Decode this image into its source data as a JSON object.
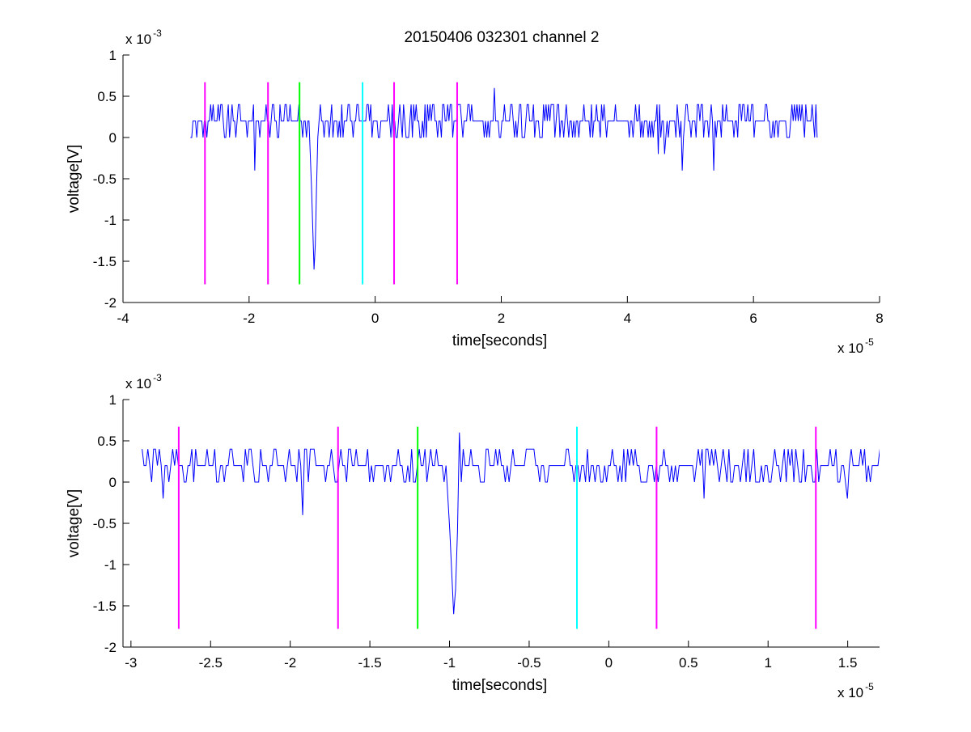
{
  "figure": {
    "title": "20150406 032301 channel 2",
    "colors": {
      "signal": "#0000ff",
      "marker_magenta": "#ff00ff",
      "marker_green": "#00ff00",
      "marker_cyan": "#00ffff",
      "axes": "#000000"
    }
  },
  "chart_data": [
    {
      "type": "line",
      "title": "20150406 032301 channel 2",
      "xlabel": "time[seconds]",
      "ylabel": "voltage[V]",
      "x_multiplier": "x 10",
      "x_exponent": "-5",
      "y_multiplier": "x 10",
      "y_exponent": "-3",
      "xlim": [
        -4,
        8
      ],
      "ylim": [
        -2,
        1
      ],
      "x_ticks": [
        -4,
        -2,
        0,
        2,
        4,
        6,
        8
      ],
      "x_tick_labels": [
        "-4",
        "-2",
        "0",
        "2",
        "4",
        "6",
        "8"
      ],
      "y_ticks": [
        1,
        0.5,
        0,
        -0.5,
        -1,
        -1.5,
        -2
      ],
      "y_tick_labels": [
        "1",
        "0.5",
        "0",
        "-0.5",
        "-1",
        "-1.5",
        "-2"
      ],
      "grid": false,
      "signal": {
        "x_range": [
          -2.93,
          7.02
        ],
        "baseline": 0.2,
        "levels": [
          0,
          0.2,
          0.4
        ],
        "events": [
          {
            "x": -1.92,
            "y": -0.4
          },
          {
            "x": -0.98,
            "y": -1.6
          },
          {
            "x": 1.9,
            "y": 0.6
          },
          {
            "x": 4.88,
            "y": -0.4
          },
          {
            "x": 5.38,
            "y": -0.4
          },
          {
            "x": 4.5,
            "y": -0.2
          },
          {
            "x": 4.6,
            "y": -0.2
          }
        ]
      },
      "markers": [
        {
          "x": -2.7,
          "y_range": [
            -1.78,
            0.67
          ],
          "color": "magenta"
        },
        {
          "x": -1.7,
          "y_range": [
            -1.78,
            0.67
          ],
          "color": "magenta"
        },
        {
          "x": -1.2,
          "y_range": [
            -1.78,
            0.67
          ],
          "color": "green"
        },
        {
          "x": -0.2,
          "y_range": [
            -1.78,
            0.67
          ],
          "color": "cyan"
        },
        {
          "x": 0.3,
          "y_range": [
            -1.78,
            0.67
          ],
          "color": "magenta"
        },
        {
          "x": 1.3,
          "y_range": [
            -1.78,
            0.67
          ],
          "color": "magenta"
        }
      ]
    },
    {
      "type": "line",
      "title": "",
      "xlabel": "time[seconds]",
      "ylabel": "voltage[V]",
      "x_multiplier": "x 10",
      "x_exponent": "-5",
      "y_multiplier": "x 10",
      "y_exponent": "-3",
      "xlim": [
        -3.05,
        1.7
      ],
      "ylim": [
        -2,
        1
      ],
      "x_ticks": [
        -3,
        -2.5,
        -2,
        -1.5,
        -1,
        -0.5,
        0,
        0.5,
        1,
        1.5
      ],
      "x_tick_labels": [
        "-3",
        "-2.5",
        "-2",
        "-1.5",
        "-1",
        "-0.5",
        "0",
        "0.5",
        "1",
        "1.5"
      ],
      "y_ticks": [
        1,
        0.5,
        0,
        -0.5,
        -1,
        -1.5,
        -2
      ],
      "y_tick_labels": [
        "1",
        "0.5",
        "0",
        "-0.5",
        "-1",
        "-1.5",
        "-2"
      ],
      "grid": false,
      "signal": {
        "x_range": [
          -2.93,
          1.7
        ],
        "baseline": 0.2,
        "levels": [
          0,
          0.2,
          0.4
        ],
        "events": [
          {
            "x": -2.8,
            "y": -0.2
          },
          {
            "x": -1.92,
            "y": -0.4
          },
          {
            "x": -0.98,
            "y": -1.6
          },
          {
            "x": -0.94,
            "y": 0.6
          },
          {
            "x": 0.6,
            "y": -0.2
          },
          {
            "x": 1.5,
            "y": -0.2
          }
        ]
      },
      "markers": [
        {
          "x": -2.7,
          "y_range": [
            -1.78,
            0.67
          ],
          "color": "magenta"
        },
        {
          "x": -1.7,
          "y_range": [
            -1.78,
            0.67
          ],
          "color": "magenta"
        },
        {
          "x": -1.2,
          "y_range": [
            -1.78,
            0.67
          ],
          "color": "green"
        },
        {
          "x": -0.2,
          "y_range": [
            -1.78,
            0.67
          ],
          "color": "cyan"
        },
        {
          "x": 0.3,
          "y_range": [
            -1.78,
            0.67
          ],
          "color": "magenta"
        },
        {
          "x": 1.3,
          "y_range": [
            -1.78,
            0.67
          ],
          "color": "magenta"
        }
      ]
    }
  ]
}
